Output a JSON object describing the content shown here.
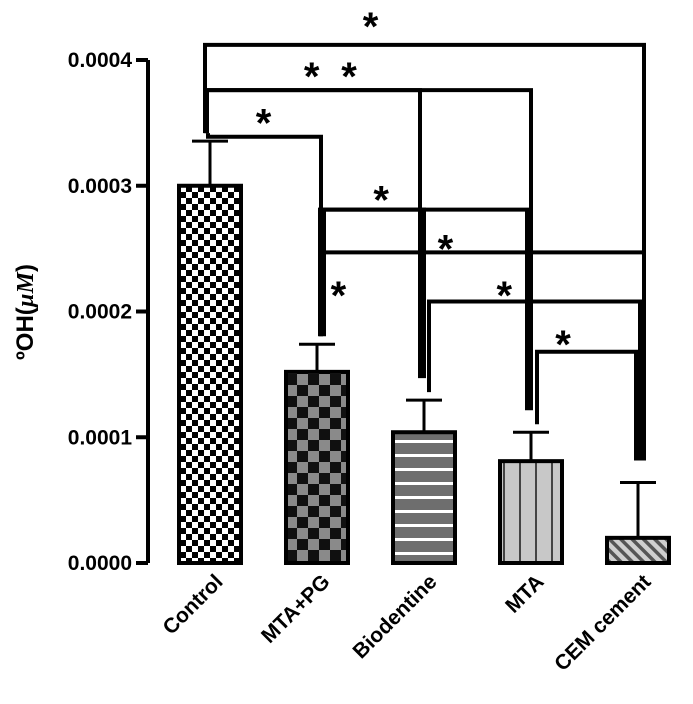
{
  "chart_data": {
    "type": "bar",
    "title": "",
    "xlabel": "",
    "ylabel": "ºOH(",
    "ylabel_unit": "µM",
    "ylabel_close": ")",
    "ylim": [
      0,
      0.0004
    ],
    "yticks": [
      {
        "value": 0.0,
        "label": "0.0000"
      },
      {
        "value": 0.0001,
        "label": "0.0001"
      },
      {
        "value": 0.0002,
        "label": "0.0002"
      },
      {
        "value": 0.0003,
        "label": "0.0003"
      },
      {
        "value": 0.0004,
        "label": "0.0004"
      }
    ],
    "categories": [
      "Control",
      "MTA+PG",
      "Biodentine",
      "MTA",
      "CEM cement"
    ],
    "values": [
      0.0003,
      0.000152,
      0.000104,
      8.1e-05,
      2e-05
    ],
    "errors": [
      3.55e-05,
      2.2e-05,
      2.55e-05,
      2.3e-05,
      4.4e-05
    ],
    "patterns": [
      "small-checker",
      "large-checker",
      "horizontal-stripes",
      "vertical-stripes",
      "diagonal-hatch"
    ],
    "significance_marker": "*",
    "significance": [
      {
        "from": 0,
        "to": 4,
        "bracket_level": 0.000412,
        "star_value": 0.000432,
        "star_category": 1.5
      },
      {
        "from": 0,
        "to": 3,
        "bracket_level": 0.000376,
        "star_value": 0.000392,
        "star_category": 1.3
      },
      {
        "from": 0,
        "to": 2,
        "bracket_level": 0.000376,
        "star_value": 0.000392,
        "star_category": 0.95
      },
      {
        "from": 0,
        "to": 1,
        "bracket_level": 0.000339,
        "star_value": 0.000355,
        "star_category": 0.5
      },
      {
        "from": 1,
        "to": 2,
        "bracket_level": 0.000281,
        "star_value": 0.000294,
        "star_category": 1.6
      },
      {
        "from": 1,
        "to": 3,
        "bracket_level": 0.000281,
        "star_value": 0.000255,
        "star_category": 2.2
      },
      {
        "from": 1,
        "to": 4,
        "bracket_level": 0.000247,
        "star_value": 0.000218,
        "star_category": 1.2
      },
      {
        "from": 2,
        "to": 4,
        "bracket_level": 0.000208,
        "star_value": 0.000218,
        "star_category": 2.75
      },
      {
        "from": 3,
        "to": 4,
        "bracket_level": 0.000168,
        "star_value": 0.000179,
        "star_category": 3.3
      }
    ]
  }
}
